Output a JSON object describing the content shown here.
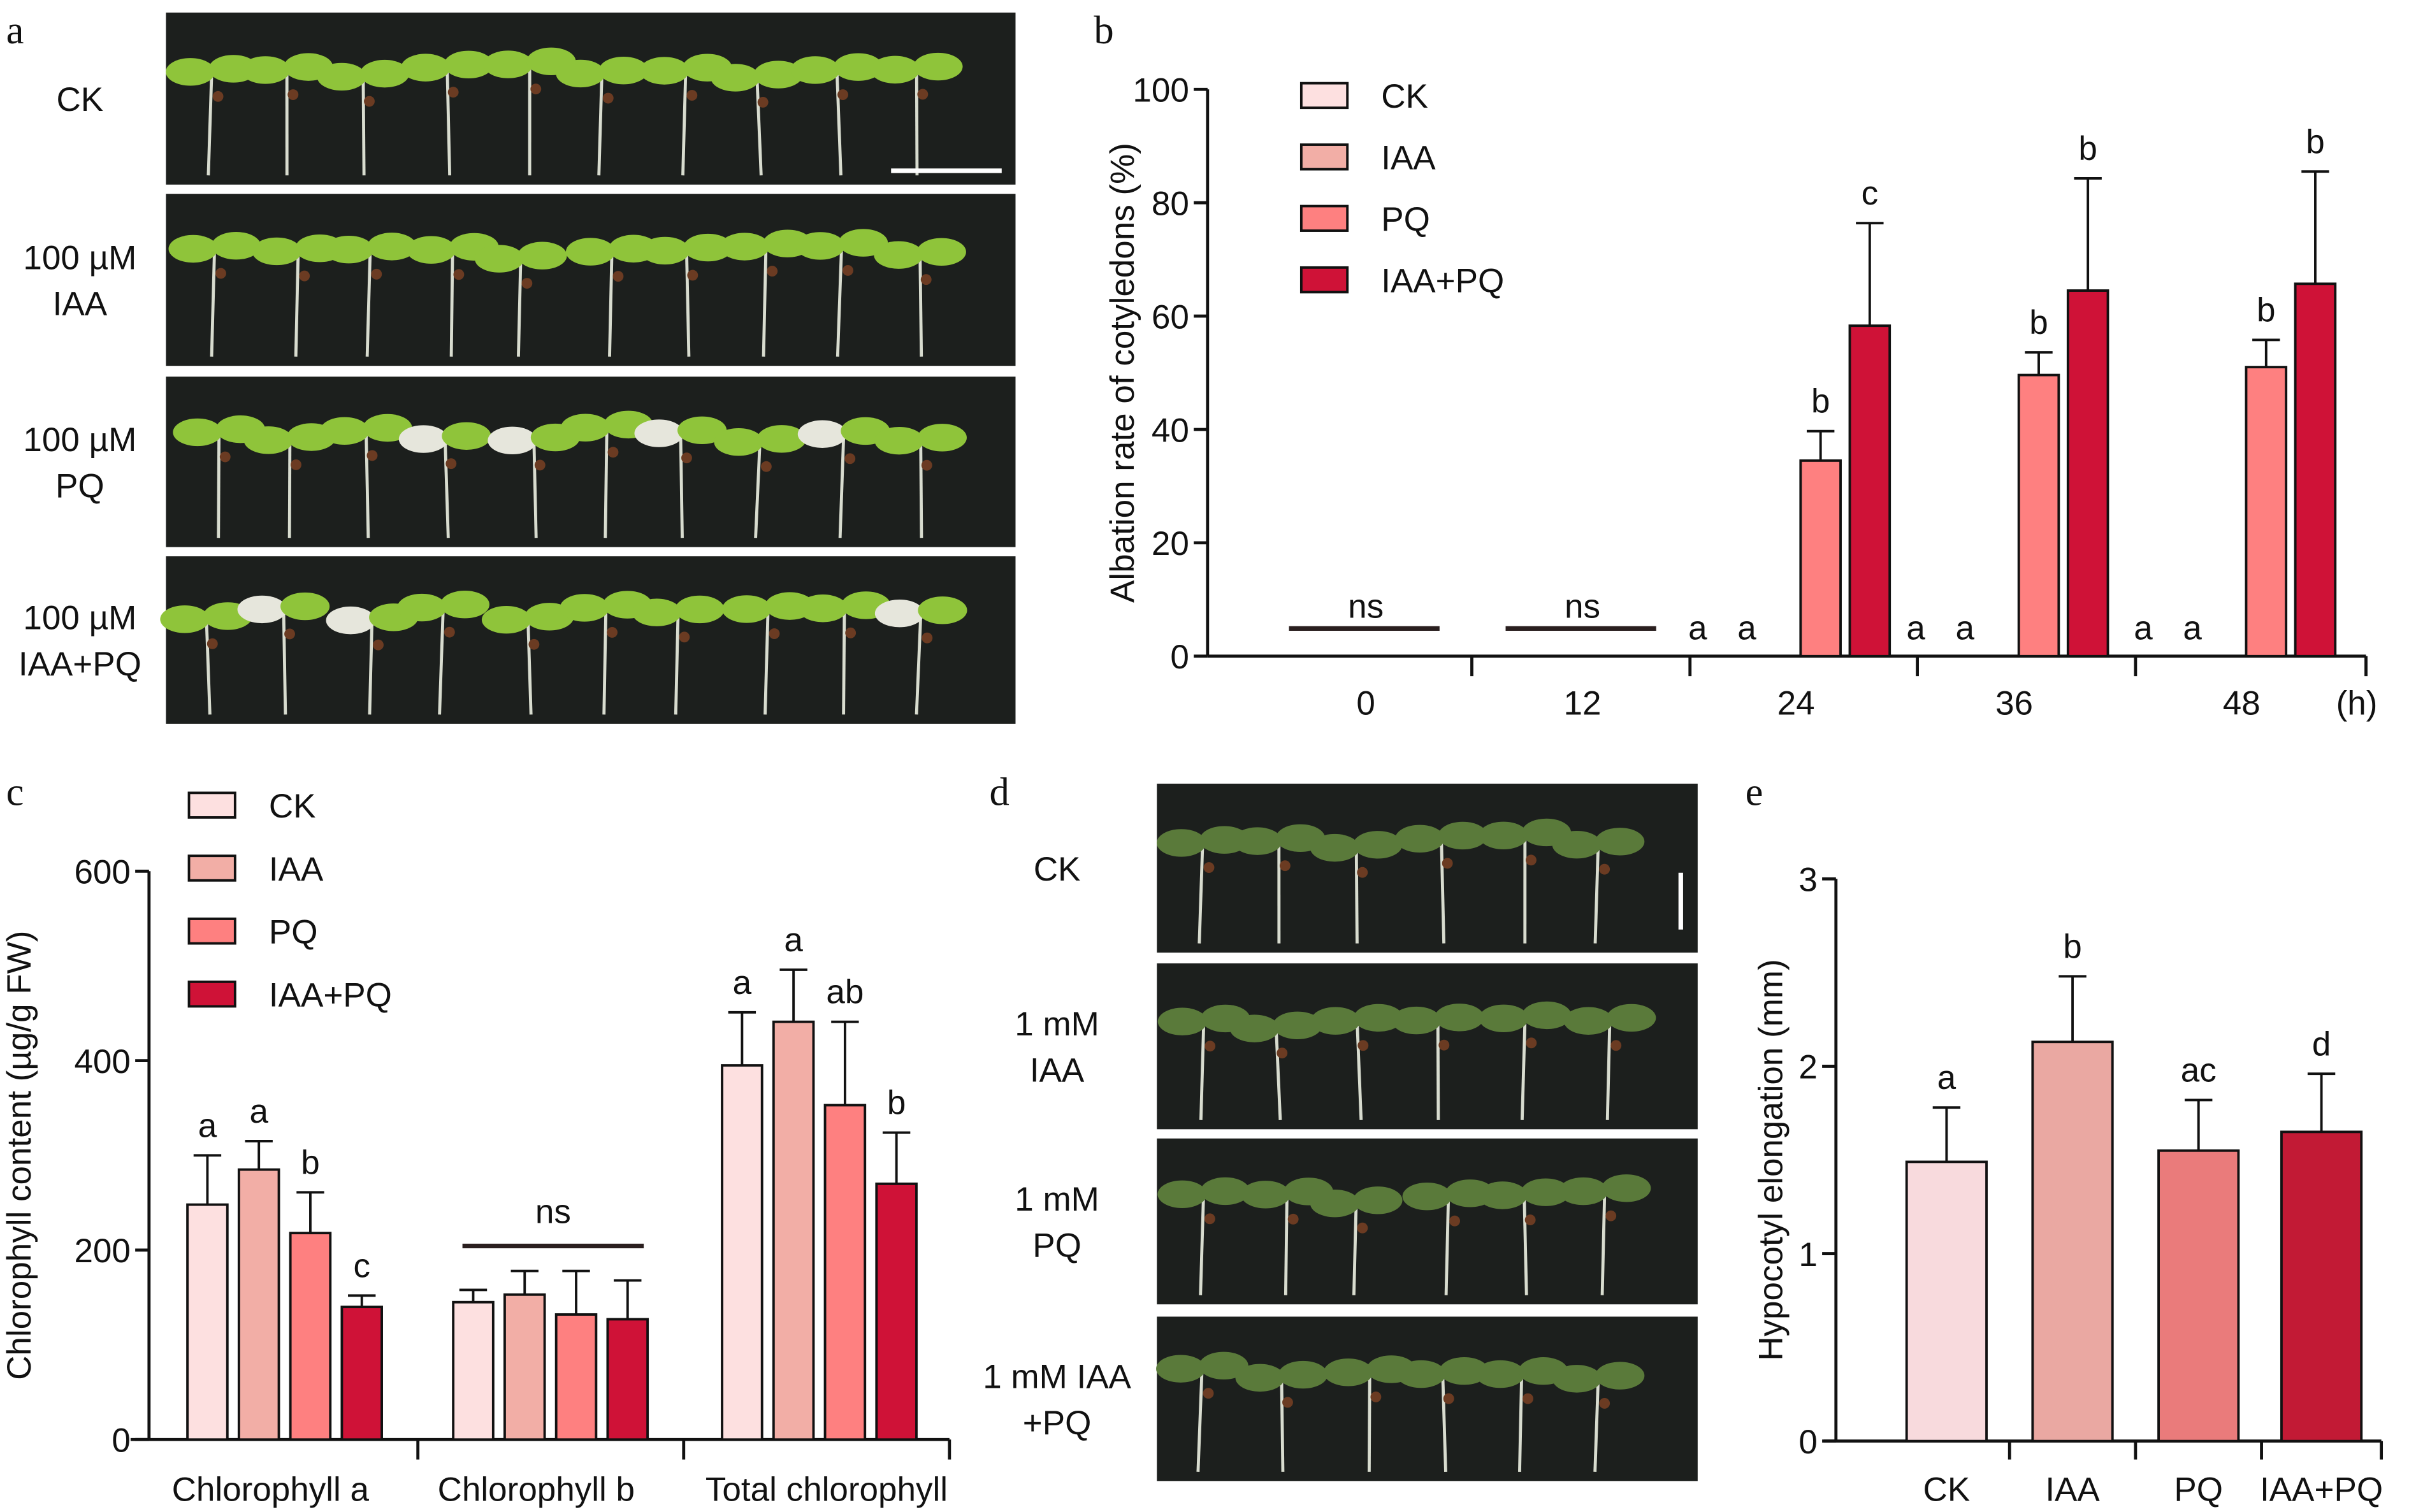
{
  "panels": {
    "a": {
      "letter": "a",
      "rows": [
        {
          "label_lines": [
            "CK"
          ]
        },
        {
          "label_lines": [
            "100 µM",
            "IAA"
          ]
        },
        {
          "label_lines": [
            "100 µM",
            "PQ"
          ]
        },
        {
          "label_lines": [
            "100 µM",
            "IAA+PQ"
          ]
        }
      ]
    },
    "d": {
      "letter": "d",
      "rows": [
        {
          "label_lines": [
            "CK"
          ]
        },
        {
          "label_lines": [
            "1 mM",
            "IAA"
          ]
        },
        {
          "label_lines": [
            "1 mM",
            "PQ"
          ]
        },
        {
          "label_lines": [
            "1 mM IAA",
            "+PQ"
          ]
        }
      ]
    }
  },
  "colors": {
    "bc": {
      "CK": "#fde0e0",
      "IAA": "#f2aea6",
      "PQ": "#fe8080",
      "IAA+PQ": "#cf1237"
    },
    "e": {
      "CK": "#f8dadd",
      "IAA": "#eaa8a2",
      "PQ": "#ea7b7b",
      "IAA+PQ": "#c21a35"
    }
  },
  "chart_data": [
    {
      "panel": "b",
      "type": "bar",
      "ylabel": "Albation rate of cotyledons (%)",
      "xunit": "(h)",
      "categories": [
        "0",
        "12",
        "24",
        "36",
        "48"
      ],
      "ylim": [
        0,
        100
      ],
      "yticks": [
        0,
        20,
        40,
        60,
        80,
        100
      ],
      "legend": [
        "CK",
        "IAA",
        "PQ",
        "IAA+PQ"
      ],
      "legend_position": "top-left",
      "series": [
        {
          "name": "CK",
          "values": [
            0,
            0,
            0,
            0,
            0
          ],
          "error_upper": [
            null,
            null,
            null,
            null,
            null
          ]
        },
        {
          "name": "IAA",
          "values": [
            0,
            0,
            0,
            0,
            0
          ],
          "error_upper": [
            null,
            null,
            null,
            null,
            null
          ]
        },
        {
          "name": "PQ",
          "values": [
            0,
            0,
            34.5,
            49.6,
            51.0
          ],
          "error_upper": [
            null,
            null,
            39.7,
            53.6,
            55.8
          ]
        },
        {
          "name": "IAA+PQ",
          "values": [
            0,
            0,
            58.3,
            64.5,
            65.7
          ],
          "error_upper": [
            null,
            null,
            76.4,
            84.3,
            85.5
          ]
        }
      ],
      "group_annotations": [
        "ns",
        "ns",
        null,
        null,
        null
      ],
      "letters": [
        [
          null,
          null,
          null,
          null
        ],
        [
          null,
          null,
          null,
          null
        ],
        [
          "a",
          "a",
          "b",
          "c"
        ],
        [
          "a",
          "a",
          "b",
          "b"
        ],
        [
          "a",
          "a",
          "b",
          "b"
        ]
      ]
    },
    {
      "panel": "c",
      "type": "bar",
      "ylabel": "Chlorophyll content (µg/g FW)",
      "categories": [
        "Chlorophyll a",
        "Chlorophyll b",
        "Total chlorophyll"
      ],
      "ylim": [
        0,
        600
      ],
      "yticks": [
        0,
        200,
        400,
        600
      ],
      "legend": [
        "CK",
        "IAA",
        "PQ",
        "IAA+PQ"
      ],
      "legend_position": "top-left",
      "series": [
        {
          "name": "CK",
          "values": [
            248,
            145,
            395
          ],
          "error_upper": [
            300,
            158,
            451
          ]
        },
        {
          "name": "IAA",
          "values": [
            285,
            153,
            441
          ],
          "error_upper": [
            315,
            178,
            496
          ]
        },
        {
          "name": "PQ",
          "values": [
            218,
            132,
            353
          ],
          "error_upper": [
            261,
            178,
            441
          ]
        },
        {
          "name": "IAA+PQ",
          "values": [
            140,
            127,
            270
          ],
          "error_upper": [
            152,
            168,
            324
          ]
        }
      ],
      "group_annotations": [
        null,
        "ns",
        null
      ],
      "letters": [
        [
          "a",
          "a",
          "b",
          "c"
        ],
        [
          null,
          null,
          null,
          null
        ],
        [
          "a",
          "a",
          "ab",
          "b"
        ]
      ]
    },
    {
      "panel": "e",
      "type": "bar",
      "ylabel": "Hypocotyl elongation (mm)",
      "categories": [
        "CK",
        "IAA",
        "PQ",
        "IAA+PQ"
      ],
      "ylim": [
        0,
        3
      ],
      "yticks": [
        0,
        1,
        2,
        3
      ],
      "values": [
        1.49,
        2.13,
        1.55,
        1.65
      ],
      "error_upper": [
        1.78,
        2.48,
        1.82,
        1.96
      ],
      "letters": [
        "a",
        "b",
        "ac",
        "d"
      ]
    }
  ]
}
